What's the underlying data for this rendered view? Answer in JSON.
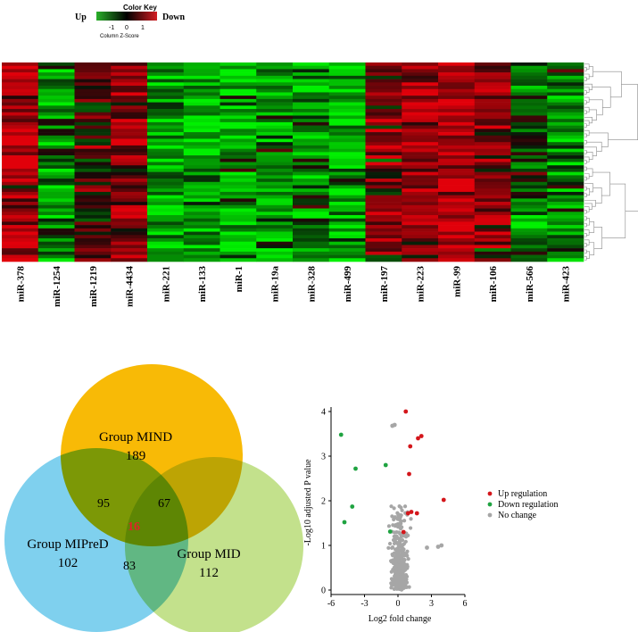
{
  "colors": {
    "up": "#1bb01b",
    "down": "#d2171c",
    "mid": "#000000",
    "venn_mind": "#f8ba06",
    "venn_mipred": "#7fd0ee",
    "venn_mid": "#c3e18c",
    "center_count": "#e0232a",
    "volcano_up": "#d4161b",
    "volcano_down": "#1fa341",
    "volcano_none": "#a6a6a6"
  },
  "color_key": {
    "title": "Color Key",
    "left_label": "Up",
    "right_label": "Down",
    "ticks": [
      "-1",
      "0",
      "1"
    ],
    "axis_title": "Column Z-Score"
  },
  "chart_data": [
    {
      "type": "heatmap",
      "title": "",
      "columns": [
        "miR-378",
        "miR-1254",
        "miR-1219",
        "miR-4434",
        "miR-221",
        "miR-133",
        "miR-1",
        "miR-19a",
        "miR-328",
        "miR-499",
        "miR-197",
        "miR-223",
        "miR-99",
        "miR-106",
        "miR-566",
        "miR-423"
      ],
      "column_tendency_z": [
        1.0,
        -0.6,
        0.1,
        0.7,
        -0.8,
        -0.8,
        -0.9,
        -0.8,
        -0.6,
        -0.9,
        0.5,
        0.85,
        1.0,
        0.55,
        -0.4,
        -0.55
      ],
      "n_rows": 60,
      "row_dendrogram": true
    },
    {
      "type": "venn",
      "sets": [
        "Group MIND",
        "Group MIPreD",
        "Group MID"
      ],
      "only": [
        189,
        102,
        112
      ],
      "mind_mipred": 95,
      "mind_mid": 67,
      "mipred_mid": 83,
      "all_three": 16
    },
    {
      "type": "scatter",
      "xlabel": "Log2 fold change",
      "ylabel": "-Log10 adjusted P value",
      "xlim": [
        -6,
        6
      ],
      "ylim": [
        -0.1,
        4.1
      ],
      "xticks": [
        "-6",
        "-3",
        "0",
        "3",
        "6"
      ],
      "yticks": [
        "0",
        "1",
        "2",
        "3",
        "4"
      ],
      "legend": [
        "Up regulation",
        "Down regulation",
        "No change"
      ],
      "legend_position": "right",
      "series": [
        {
          "name": "Up regulation",
          "points": [
            [
              0.7,
              4.0
            ],
            [
              1.8,
              3.4
            ],
            [
              2.1,
              3.45
            ],
            [
              1.1,
              3.22
            ],
            [
              1.0,
              2.6
            ],
            [
              4.1,
              2.02
            ],
            [
              1.2,
              1.75
            ],
            [
              1.7,
              1.72
            ],
            [
              0.9,
              1.72
            ],
            [
              0.5,
              1.3
            ]
          ]
        },
        {
          "name": "Down regulation",
          "points": [
            [
              -5.1,
              3.48
            ],
            [
              -3.8,
              2.72
            ],
            [
              -1.1,
              2.8
            ],
            [
              -4.1,
              1.87
            ],
            [
              -4.8,
              1.52
            ],
            [
              -0.7,
              1.31
            ]
          ]
        },
        {
          "name": "No change",
          "cluster": "dense cluster around x≈-0.5..0.8, y≈0..1.6 with a few points at y≈2.0..3.7",
          "points": [
            [
              -0.5,
              3.68
            ],
            [
              -0.3,
              3.7
            ],
            [
              3.6,
              0.97
            ],
            [
              3.9,
              1.0
            ],
            [
              2.6,
              0.95
            ]
          ]
        }
      ]
    }
  ]
}
